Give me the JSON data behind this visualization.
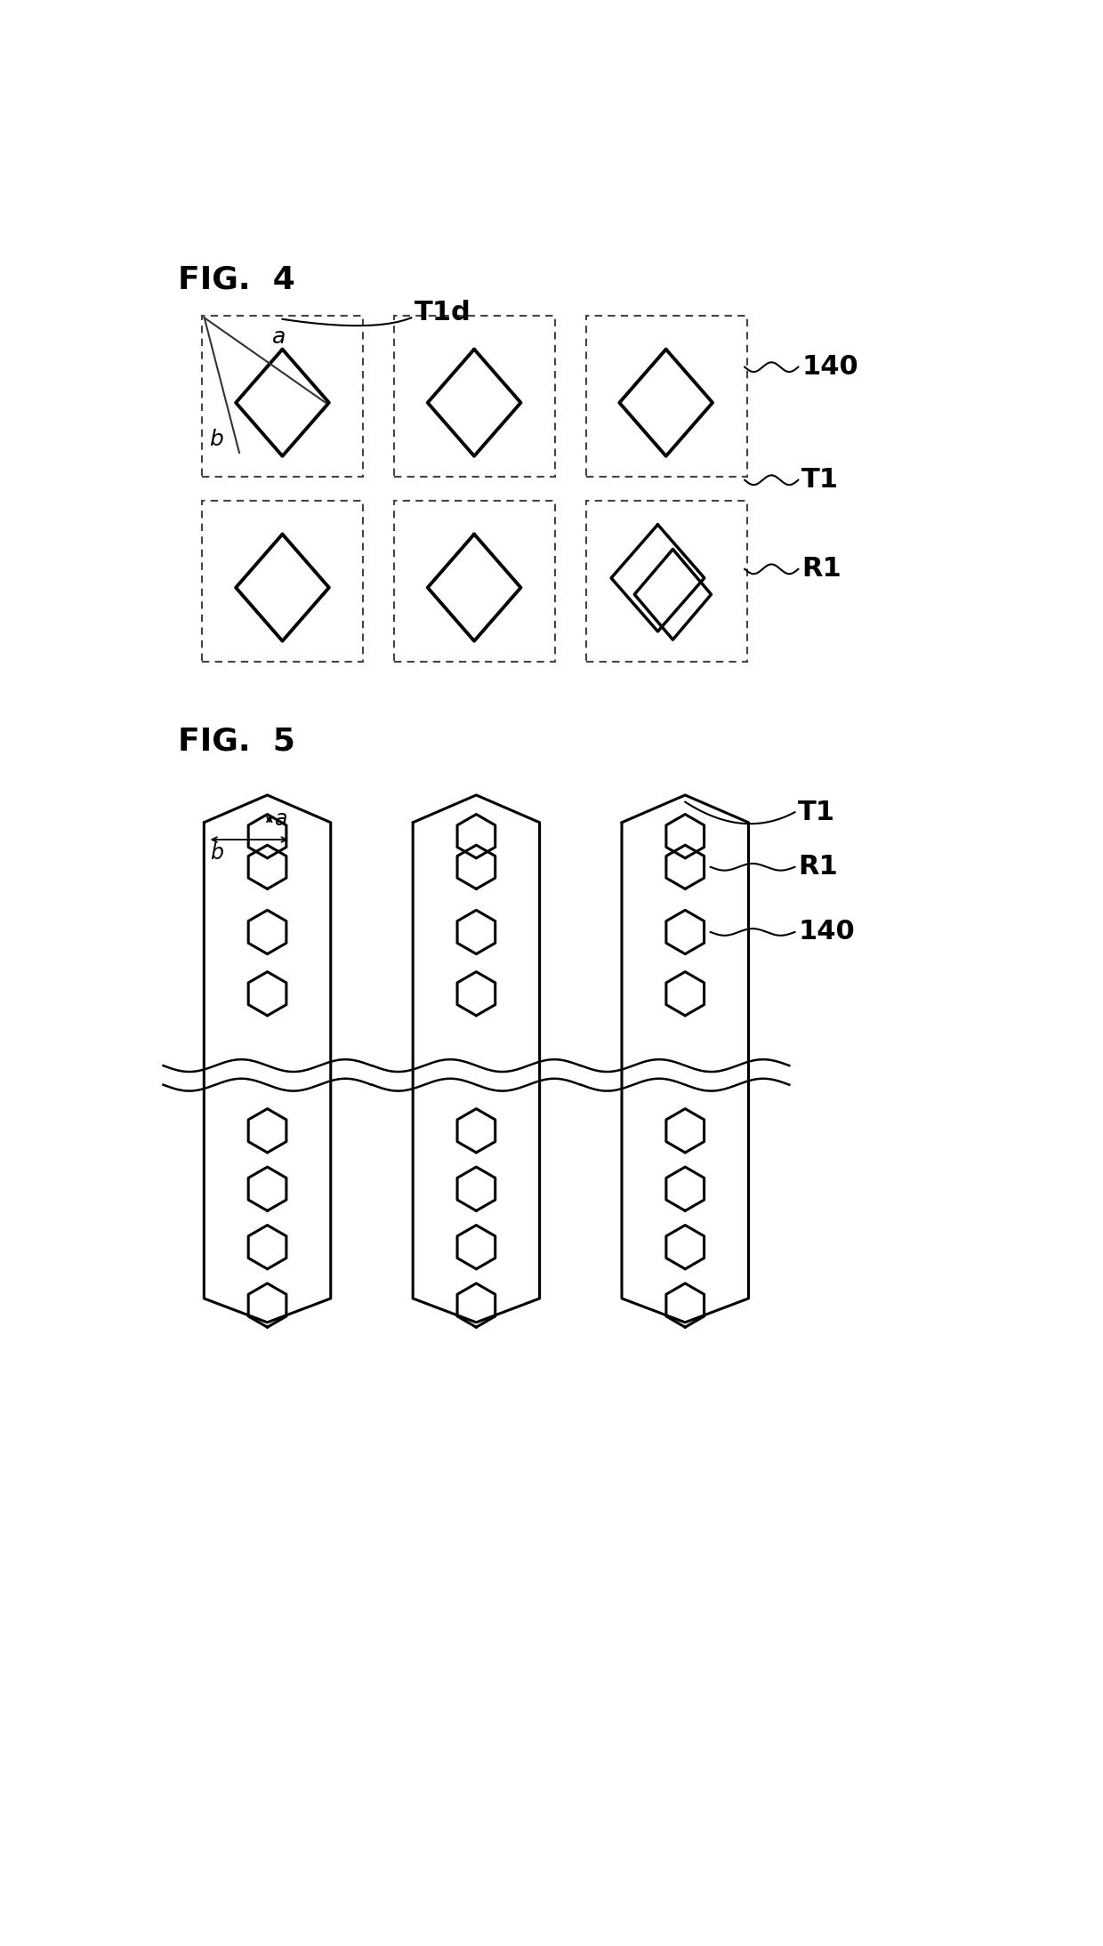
{
  "fig4_title": "FIG.  4",
  "fig5_title": "FIG.  5",
  "background_color": "#ffffff",
  "label_T1d": "T1d",
  "label_140": "140",
  "label_T1_fig4": "T1",
  "label_R1_fig4": "R1",
  "label_a": "a",
  "label_b": "b",
  "label_T1_fig5": "T1",
  "label_R1_fig5": "R1",
  "label_140_fig5": "140"
}
